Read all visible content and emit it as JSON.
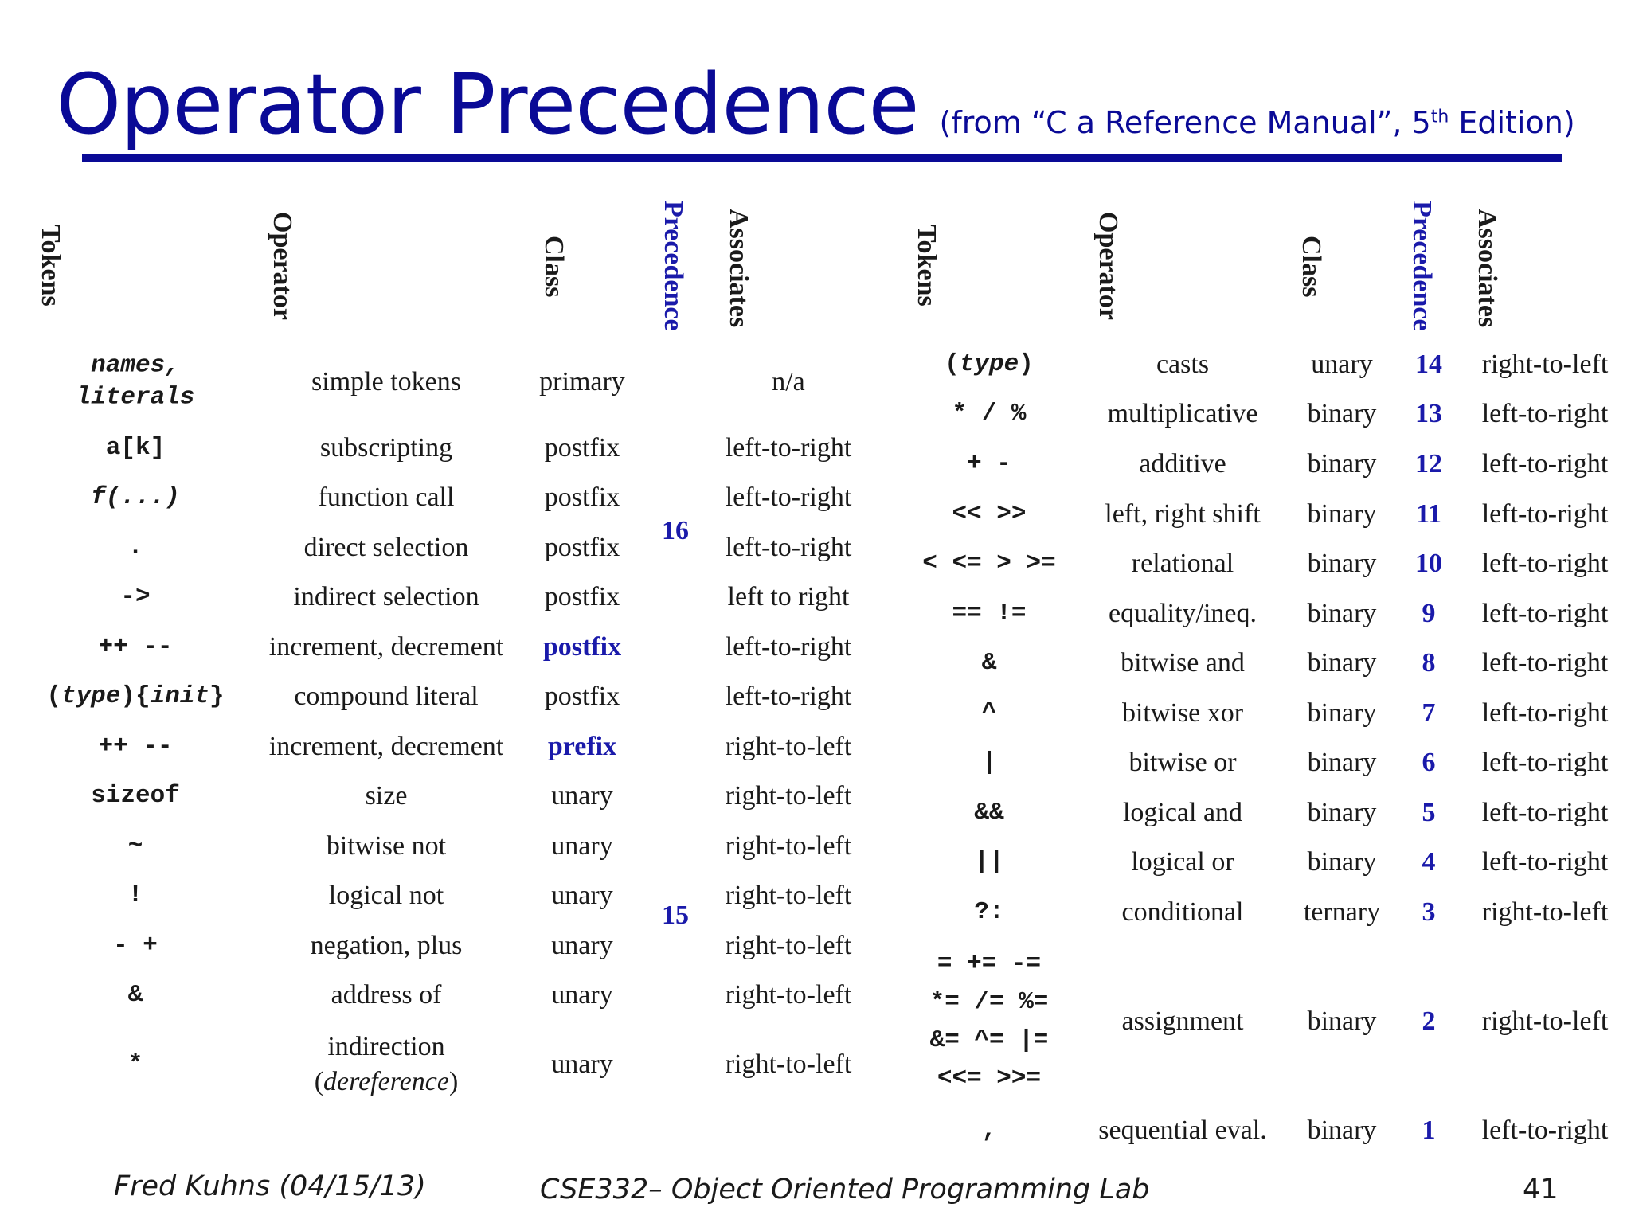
{
  "title": "Operator Precedence",
  "subtitle": {
    "prefix": "(from “C a Reference Manual”, 5",
    "sup": "th",
    "suffix": " Edition)"
  },
  "headers": {
    "tokens": "Tokens",
    "operator": "Operator",
    "class": "Class",
    "precedence": "Precedence",
    "associates": "Associates"
  },
  "left_rows": [
    {
      "tok1": "names,",
      "tok2": "literals",
      "op": "simple tokens",
      "cls": "primary",
      "assoc": "n/a"
    },
    {
      "tok": "a[k]",
      "op": "subscripting",
      "cls": "postfix",
      "assoc": "left-to-right"
    },
    {
      "tok": "f(...)",
      "op": "function call",
      "cls": "postfix",
      "assoc": "left-to-right"
    },
    {
      "tok": ".",
      "op": "direct selection",
      "cls": "postfix",
      "assoc": "left-to-right"
    },
    {
      "tok": "->",
      "op": "indirect selection",
      "cls": "postfix",
      "assoc": "left to right"
    },
    {
      "tok": "++ --",
      "op": "increment, decrement",
      "cls": "postfix",
      "assoc": "left-to-right"
    },
    {
      "tok_a": "(",
      "tok_b": "type",
      "tok_c": "){",
      "tok_d": "init",
      "tok_e": "}",
      "op": "compound literal",
      "cls": "postfix",
      "assoc": "left-to-right"
    },
    {
      "tok": "++ --",
      "op": "increment, decrement",
      "cls": "prefix",
      "assoc": "right-to-left"
    },
    {
      "tok": "sizeof",
      "op": "size",
      "cls": "unary",
      "assoc": "right-to-left"
    },
    {
      "tok": "~",
      "op": "bitwise not",
      "cls": "unary",
      "assoc": "right-to-left"
    },
    {
      "tok": "!",
      "op": "logical not",
      "cls": "unary",
      "assoc": "right-to-left"
    },
    {
      "tok": "- +",
      "op": "negation, plus",
      "cls": "unary",
      "assoc": "right-to-left"
    },
    {
      "tok": "&",
      "op": "address of",
      "cls": "unary",
      "assoc": "right-to-left"
    },
    {
      "tok": "*",
      "op1": "indirection",
      "op2": "dereference",
      "cls": "unary",
      "assoc": "right-to-left"
    }
  ],
  "left_precedence": [
    "16",
    "15"
  ],
  "right_rows": [
    {
      "tok": "type",
      "op": "casts",
      "cls": "unary",
      "prec": "14",
      "assoc": "right-to-left"
    },
    {
      "tok": "* / %",
      "op": "multiplicative",
      "cls": "binary",
      "prec": "13",
      "assoc": "left-to-right"
    },
    {
      "tok": "+ -",
      "op": "additive",
      "cls": "binary",
      "prec": "12",
      "assoc": "left-to-right"
    },
    {
      "tok": "<< >>",
      "op": "left, right shift",
      "cls": "binary",
      "prec": "11",
      "assoc": "left-to-right"
    },
    {
      "tok": "< <= > >=",
      "op": "relational",
      "cls": "binary",
      "prec": "10",
      "assoc": "left-to-right"
    },
    {
      "tok": "== !=",
      "op": "equality/ineq.",
      "cls": "binary",
      "prec": "9",
      "assoc": "left-to-right"
    },
    {
      "tok": "&",
      "op": "bitwise and",
      "cls": "binary",
      "prec": "8",
      "assoc": "left-to-right"
    },
    {
      "tok": "^",
      "op": "bitwise xor",
      "cls": "binary",
      "prec": "7",
      "assoc": "left-to-right"
    },
    {
      "tok": "|",
      "op": "bitwise or",
      "cls": "binary",
      "prec": "6",
      "assoc": "left-to-right"
    },
    {
      "tok": "&&",
      "op": "logical and",
      "cls": "binary",
      "prec": "5",
      "assoc": "left-to-right"
    },
    {
      "tok": "||",
      "op": "logical or",
      "cls": "binary",
      "prec": "4",
      "assoc": "left-to-right"
    },
    {
      "tok": "?:",
      "op": "conditional",
      "cls": "ternary",
      "prec": "3",
      "assoc": "right-to-left"
    },
    {
      "tok1": "= += -=",
      "tok2": "*= /= %=",
      "tok3": "&= ^= |=",
      "tok4": "<<= >>=",
      "op": "assignment",
      "cls": "binary",
      "prec": "2",
      "assoc": "right-to-left"
    },
    {
      "tok": ",",
      "op": "sequential eval.",
      "cls": "binary",
      "prec": "1",
      "assoc": "left-to-right"
    }
  ],
  "footer": {
    "author": "Fred Kuhns (04/15/13)",
    "course": "CSE332– Object Oriented Programming Lab",
    "page": "41"
  },
  "colors": {
    "title": "#0a0a96",
    "accent": "#1a1aaa"
  }
}
